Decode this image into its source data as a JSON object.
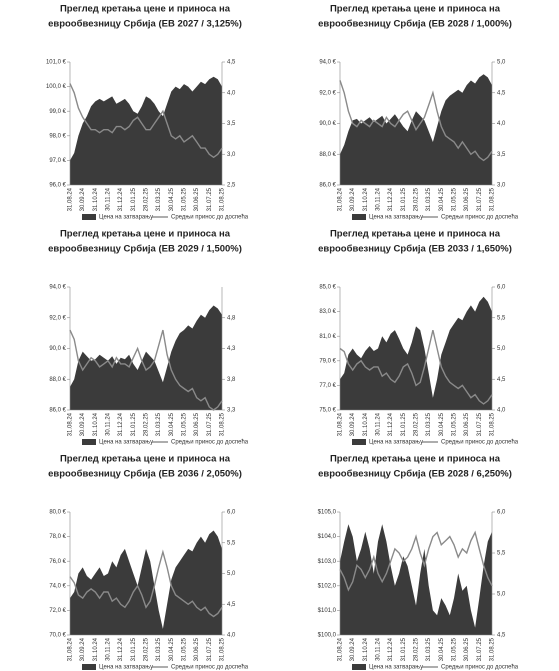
{
  "chart_data": [
    {
      "type": "area",
      "title": [
        "Преглед кретања цене и приноса на",
        "еврообвезницу Србија (ЕВ 2027 / 3,125%)"
      ],
      "categories": [
        "31.08.24",
        null,
        null,
        "30.09.24",
        null,
        null,
        "31.10.24",
        null,
        null,
        "30.11.24",
        null,
        null,
        "31.12.24",
        null,
        null,
        "31.01.25",
        null,
        null,
        "28.02.25",
        null,
        null,
        "31.03.25",
        null,
        null,
        "30.04.25",
        null,
        null,
        "31.05.25",
        null,
        null,
        "30.06.25",
        null,
        null,
        "31.07.25",
        null,
        null,
        "31.08.25"
      ],
      "series": [
        {
          "name": "Цена на затварању",
          "color": "#3b3b3b",
          "values": [
            97.0,
            97.3,
            98.0,
            98.5,
            98.8,
            99.2,
            99.4,
            99.5,
            99.4,
            99.5,
            99.6,
            99.3,
            99.4,
            99.5,
            99.3,
            99.0,
            98.9,
            99.2,
            99.6,
            99.5,
            99.3,
            99.0,
            98.8,
            99.3,
            99.8,
            100.0,
            99.9,
            100.1,
            100.0,
            99.8,
            100.0,
            100.2,
            100.1,
            100.3,
            100.4,
            100.3,
            100.0
          ]
        },
        {
          "name": "Средњи принос до доспећа",
          "color": "#8a8a8a",
          "axis": "y2",
          "values": [
            4.15,
            4.0,
            3.75,
            3.6,
            3.5,
            3.4,
            3.4,
            3.35,
            3.4,
            3.4,
            3.35,
            3.45,
            3.45,
            3.4,
            3.45,
            3.55,
            3.6,
            3.5,
            3.4,
            3.4,
            3.5,
            3.6,
            3.7,
            3.5,
            3.3,
            3.25,
            3.3,
            3.2,
            3.25,
            3.3,
            3.2,
            3.1,
            3.1,
            3.0,
            2.95,
            3.0,
            3.1
          ]
        }
      ],
      "ylim": [
        96,
        101
      ],
      "yticks": [
        {
          "value": 96,
          "label": "96,0 €"
        },
        {
          "value": 97,
          "label": "97,0 €"
        },
        {
          "value": 98,
          "label": "98,0 €"
        },
        {
          "value": 99,
          "label": "99,0 €"
        },
        {
          "value": 100,
          "label": "100,0 €"
        },
        {
          "value": 101,
          "label": "101,0 €"
        }
      ],
      "y2lim": [
        2.5,
        4.5
      ],
      "y2ticks": [
        {
          "value": 2.5,
          "label": "2,5"
        },
        {
          "value": 3,
          "label": "3,0"
        },
        {
          "value": 3.5,
          "label": "3,5"
        },
        {
          "value": 4,
          "label": "4,0"
        },
        {
          "value": 4.5,
          "label": "4,5"
        }
      ]
    },
    {
      "type": "area",
      "title": [
        "Преглед кретања цене и приноса на",
        "еврообвезницу Србија (ЕВ 2028 / 1,000%)"
      ],
      "categories": [
        "31.08.24",
        null,
        null,
        "30.09.24",
        null,
        null,
        "31.10.24",
        null,
        null,
        "30.11.24",
        null,
        null,
        "31.12.24",
        null,
        null,
        "31.01.25",
        null,
        null,
        "28.02.25",
        null,
        null,
        "31.03.25",
        null,
        null,
        "30.04.25",
        null,
        null,
        "31.05.25",
        null,
        null,
        "30.06.25",
        null,
        null,
        "31.07.25",
        null,
        null,
        "31.08.25"
      ],
      "series": [
        {
          "name": "Цена на затварању",
          "color": "#3b3b3b",
          "values": [
            88.0,
            88.6,
            89.5,
            90.2,
            90.3,
            90.0,
            90.2,
            90.4,
            90.1,
            90.3,
            90.5,
            90.0,
            90.3,
            90.6,
            90.2,
            89.8,
            89.5,
            90.2,
            90.8,
            90.5,
            90.2,
            89.5,
            88.8,
            89.8,
            90.8,
            91.5,
            91.8,
            92.0,
            92.2,
            92.0,
            92.5,
            92.8,
            92.6,
            93.0,
            93.2,
            93.0,
            92.5
          ]
        },
        {
          "name": "Средњи принос до доспећа",
          "color": "#8a8a8a",
          "axis": "y2",
          "values": [
            4.7,
            4.5,
            4.2,
            4.0,
            3.95,
            4.05,
            4.0,
            3.95,
            4.05,
            4.0,
            3.95,
            4.1,
            4.0,
            3.95,
            4.05,
            4.15,
            4.2,
            4.05,
            3.9,
            4.0,
            4.1,
            4.3,
            4.5,
            4.2,
            3.95,
            3.8,
            3.75,
            3.7,
            3.6,
            3.7,
            3.6,
            3.5,
            3.55,
            3.45,
            3.4,
            3.45,
            3.55
          ]
        }
      ],
      "ylim": [
        86,
        94
      ],
      "yticks": [
        {
          "value": 86,
          "label": "86,0 €"
        },
        {
          "value": 88,
          "label": "88,0 €"
        },
        {
          "value": 90,
          "label": "90,0 €"
        },
        {
          "value": 92,
          "label": "92,0 €"
        },
        {
          "value": 94,
          "label": "94,0 €"
        }
      ],
      "y2lim": [
        3,
        5
      ],
      "y2ticks": [
        {
          "value": 3,
          "label": "3,0"
        },
        {
          "value": 3.5,
          "label": "3,5"
        },
        {
          "value": 4,
          "label": "4,0"
        },
        {
          "value": 4.5,
          "label": "4,5"
        },
        {
          "value": 5,
          "label": "5,0"
        }
      ]
    },
    {
      "type": "area",
      "title": [
        "Преглед кретања цене и приноса на",
        "еврообвезницу Србија (ЕВ 2029 / 1,500%)"
      ],
      "categories": [
        "31.08.24",
        null,
        null,
        "30.09.24",
        null,
        null,
        "31.10.24",
        null,
        null,
        "30.11.24",
        null,
        null,
        "31.12.24",
        null,
        null,
        "31.01.25",
        null,
        null,
        "28.02.25",
        null,
        null,
        "31.03.25",
        null,
        null,
        "30.04.25",
        null,
        null,
        "31.05.25",
        null,
        null,
        "30.06.25",
        null,
        null,
        "31.07.25",
        null,
        null,
        "31.08.25"
      ],
      "series": [
        {
          "name": "Цена на затварању",
          "color": "#3b3b3b",
          "values": [
            87.5,
            88.0,
            89.2,
            89.8,
            89.5,
            89.2,
            89.3,
            89.6,
            89.4,
            89.2,
            89.5,
            89.0,
            89.4,
            89.3,
            89.6,
            89.0,
            88.6,
            89.2,
            89.8,
            89.5,
            89.2,
            88.5,
            87.8,
            88.8,
            89.8,
            90.5,
            91.0,
            91.2,
            91.5,
            91.3,
            91.8,
            92.2,
            92.0,
            92.5,
            92.8,
            92.6,
            92.2
          ]
        },
        {
          "name": "Средњи принос до доспећа",
          "color": "#8a8a8a",
          "axis": "y2",
          "values": [
            4.6,
            4.45,
            4.1,
            3.95,
            4.05,
            4.15,
            4.1,
            4.0,
            4.05,
            4.1,
            4.0,
            4.15,
            4.05,
            4.05,
            4.0,
            4.15,
            4.3,
            4.1,
            3.95,
            4.0,
            4.1,
            4.35,
            4.6,
            4.2,
            3.95,
            3.8,
            3.7,
            3.65,
            3.6,
            3.65,
            3.5,
            3.45,
            3.5,
            3.35,
            3.3,
            3.35,
            3.45
          ]
        }
      ],
      "ylim": [
        86,
        94
      ],
      "yticks": [
        {
          "value": 86,
          "label": "86,0 €"
        },
        {
          "value": 88,
          "label": "88,0 €"
        },
        {
          "value": 90,
          "label": "90,0 €"
        },
        {
          "value": 92,
          "label": "92,0 €"
        },
        {
          "value": 94,
          "label": "94,0 €"
        }
      ],
      "y2lim": [
        3.3,
        5.3
      ],
      "y2ticks": [
        {
          "value": 3.3,
          "label": "3,3"
        },
        {
          "value": 3.8,
          "label": "3,8"
        },
        {
          "value": 4.3,
          "label": "4,3"
        },
        {
          "value": 4.8,
          "label": "4,8"
        }
      ]
    },
    {
      "type": "area",
      "title": [
        "Преглед кретања цене и приноса на",
        "еврообвезницу Србија (ЕВ 2033 / 1,650%)"
      ],
      "categories": [
        "31.08.24",
        null,
        null,
        "30.09.24",
        null,
        null,
        "31.10.24",
        null,
        null,
        "30.11.24",
        null,
        null,
        "31.12.24",
        null,
        null,
        "31.01.25",
        null,
        null,
        "28.02.25",
        null,
        null,
        "31.03.25",
        null,
        null,
        "30.04.25",
        null,
        null,
        "31.05.25",
        null,
        null,
        "30.06.25",
        null,
        null,
        "31.07.25",
        null,
        null,
        "31.08.25"
      ],
      "series": [
        {
          "name": "Цена на затварању",
          "color": "#3b3b3b",
          "values": [
            77.5,
            78.0,
            79.5,
            80.0,
            79.5,
            79.2,
            79.8,
            80.2,
            79.8,
            80.0,
            81.0,
            80.5,
            81.2,
            81.5,
            80.8,
            80.0,
            79.5,
            80.5,
            81.8,
            81.5,
            80.0,
            78.0,
            76.0,
            77.5,
            79.5,
            80.5,
            81.5,
            82.0,
            82.5,
            82.3,
            83.0,
            83.5,
            83.0,
            83.8,
            84.2,
            83.8,
            83.0
          ]
        },
        {
          "name": "Средњи принос до доспећа",
          "color": "#8a8a8a",
          "axis": "y2",
          "values": [
            5.0,
            4.95,
            4.75,
            4.65,
            4.75,
            4.8,
            4.7,
            4.65,
            4.7,
            4.7,
            4.55,
            4.6,
            4.5,
            4.45,
            4.55,
            4.7,
            4.75,
            4.6,
            4.4,
            4.45,
            4.7,
            5.0,
            5.3,
            5.0,
            4.7,
            4.55,
            4.45,
            4.4,
            4.35,
            4.4,
            4.3,
            4.2,
            4.25,
            4.15,
            4.1,
            4.15,
            4.25
          ]
        }
      ],
      "ylim": [
        75,
        85
      ],
      "yticks": [
        {
          "value": 75,
          "label": "75,0 €"
        },
        {
          "value": 77,
          "label": "77,0 €"
        },
        {
          "value": 79,
          "label": "79,0 €"
        },
        {
          "value": 81,
          "label": "81,0 €"
        },
        {
          "value": 83,
          "label": "83,0 €"
        },
        {
          "value": 85,
          "label": "85,0 €"
        }
      ],
      "y2lim": [
        4,
        6
      ],
      "y2ticks": [
        {
          "value": 4,
          "label": "4,0"
        },
        {
          "value": 4.5,
          "label": "4,5"
        },
        {
          "value": 5,
          "label": "5,0"
        },
        {
          "value": 5.5,
          "label": "5,5"
        },
        {
          "value": 6,
          "label": "6,0"
        }
      ]
    },
    {
      "type": "area",
      "title": [
        "Преглед кретања цене и приноса на",
        "еврообвезницу Србија (ЕВ 2036 / 2,050%)"
      ],
      "categories": [
        "31.08.24",
        null,
        null,
        "30.09.24",
        null,
        null,
        "31.10.24",
        null,
        null,
        "30.11.24",
        null,
        null,
        "31.12.24",
        null,
        null,
        "31.01.25",
        null,
        null,
        "28.02.25",
        null,
        null,
        "31.03.25",
        null,
        null,
        "30.04.25",
        null,
        null,
        "31.05.25",
        null,
        null,
        "30.06.25",
        null,
        null,
        "31.07.25",
        null,
        null,
        "31.08.25"
      ],
      "series": [
        {
          "name": "Цена на затварању",
          "color": "#3b3b3b",
          "values": [
            73.0,
            73.5,
            75.0,
            75.5,
            74.8,
            74.5,
            75.0,
            75.5,
            74.8,
            75.0,
            76.0,
            75.5,
            76.5,
            77.0,
            76.0,
            75.0,
            74.0,
            75.5,
            77.0,
            76.0,
            74.0,
            72.0,
            70.5,
            72.5,
            74.5,
            75.5,
            76.0,
            76.5,
            77.0,
            76.8,
            77.5,
            78.0,
            77.5,
            78.2,
            78.5,
            78.0,
            77.0
          ]
        },
        {
          "name": "Средњи принос до доспећа",
          "color": "#8a8a8a",
          "axis": "y2",
          "values": [
            4.95,
            4.85,
            4.65,
            4.6,
            4.7,
            4.75,
            4.7,
            4.6,
            4.7,
            4.7,
            4.55,
            4.6,
            4.5,
            4.45,
            4.55,
            4.7,
            4.8,
            4.65,
            4.45,
            4.55,
            4.8,
            5.1,
            5.35,
            5.1,
            4.8,
            4.65,
            4.6,
            4.55,
            4.5,
            4.55,
            4.45,
            4.4,
            4.45,
            4.35,
            4.3,
            4.35,
            4.45
          ]
        }
      ],
      "ylim": [
        70,
        80
      ],
      "yticks": [
        {
          "value": 70,
          "label": "70,0 €"
        },
        {
          "value": 72,
          "label": "72,0 €"
        },
        {
          "value": 74,
          "label": "74,0 €"
        },
        {
          "value": 76,
          "label": "76,0 €"
        },
        {
          "value": 78,
          "label": "78,0 €"
        },
        {
          "value": 80,
          "label": "80,0 €"
        }
      ],
      "y2lim": [
        4,
        6
      ],
      "y2ticks": [
        {
          "value": 4,
          "label": "4,0"
        },
        {
          "value": 4.5,
          "label": "4,5"
        },
        {
          "value": 5,
          "label": "5,0"
        },
        {
          "value": 5.5,
          "label": "5,5"
        },
        {
          "value": 6,
          "label": "6,0"
        }
      ]
    },
    {
      "type": "area",
      "title": [
        "Преглед кретања цене и приноса на",
        "еврообвезницу Србија (ЕВ 2028 / 6,250%)"
      ],
      "categories": [
        "31.08.24",
        null,
        null,
        "30.09.24",
        null,
        null,
        "31.10.24",
        null,
        null,
        "30.11.24",
        null,
        null,
        "31.12.24",
        null,
        null,
        "31.01.25",
        null,
        null,
        "28.02.25",
        null,
        null,
        "31.03.25",
        null,
        null,
        "30.04.25",
        null,
        null,
        "31.05.25",
        null,
        null,
        "30.06.25",
        null,
        null,
        "31.07.25",
        null,
        null,
        "31.08.25"
      ],
      "series": [
        {
          "name": "Цена на затварању",
          "color": "#3b3b3b",
          "values": [
            103.0,
            103.8,
            104.5,
            104.0,
            103.0,
            103.5,
            104.2,
            103.5,
            102.5,
            103.8,
            104.5,
            103.8,
            102.8,
            102.0,
            102.5,
            103.2,
            102.8,
            102.0,
            101.2,
            102.5,
            103.5,
            102.0,
            101.0,
            100.8,
            101.5,
            101.2,
            100.8,
            101.5,
            102.5,
            101.8,
            102.0,
            101.0,
            100.3,
            101.5,
            102.8,
            103.8,
            104.2
          ]
        },
        {
          "name": "Средњи принос до доспећа",
          "color": "#8a8a8a",
          "axis": "y2",
          "values": [
            5.3,
            5.2,
            5.05,
            5.15,
            5.35,
            5.3,
            5.2,
            5.3,
            5.45,
            5.25,
            5.15,
            5.25,
            5.4,
            5.55,
            5.5,
            5.4,
            5.45,
            5.55,
            5.7,
            5.5,
            5.35,
            5.55,
            5.7,
            5.75,
            5.6,
            5.65,
            5.7,
            5.6,
            5.45,
            5.55,
            5.5,
            5.65,
            5.75,
            5.55,
            5.35,
            5.2,
            5.1
          ]
        }
      ],
      "ylim": [
        100,
        105
      ],
      "yticks": [
        {
          "value": 100,
          "label": "$100,0"
        },
        {
          "value": 101,
          "label": "$101,0"
        },
        {
          "value": 102,
          "label": "$102,0"
        },
        {
          "value": 103,
          "label": "$103,0"
        },
        {
          "value": 104,
          "label": "$104,0"
        },
        {
          "value": 105,
          "label": "$105,0"
        }
      ],
      "y2lim": [
        4.5,
        6
      ],
      "y2ticks": [
        {
          "value": 4.5,
          "label": "4,5"
        },
        {
          "value": 5,
          "label": "5,0"
        },
        {
          "value": 5.5,
          "label": "5,5"
        },
        {
          "value": 6,
          "label": "6,0"
        }
      ]
    }
  ]
}
